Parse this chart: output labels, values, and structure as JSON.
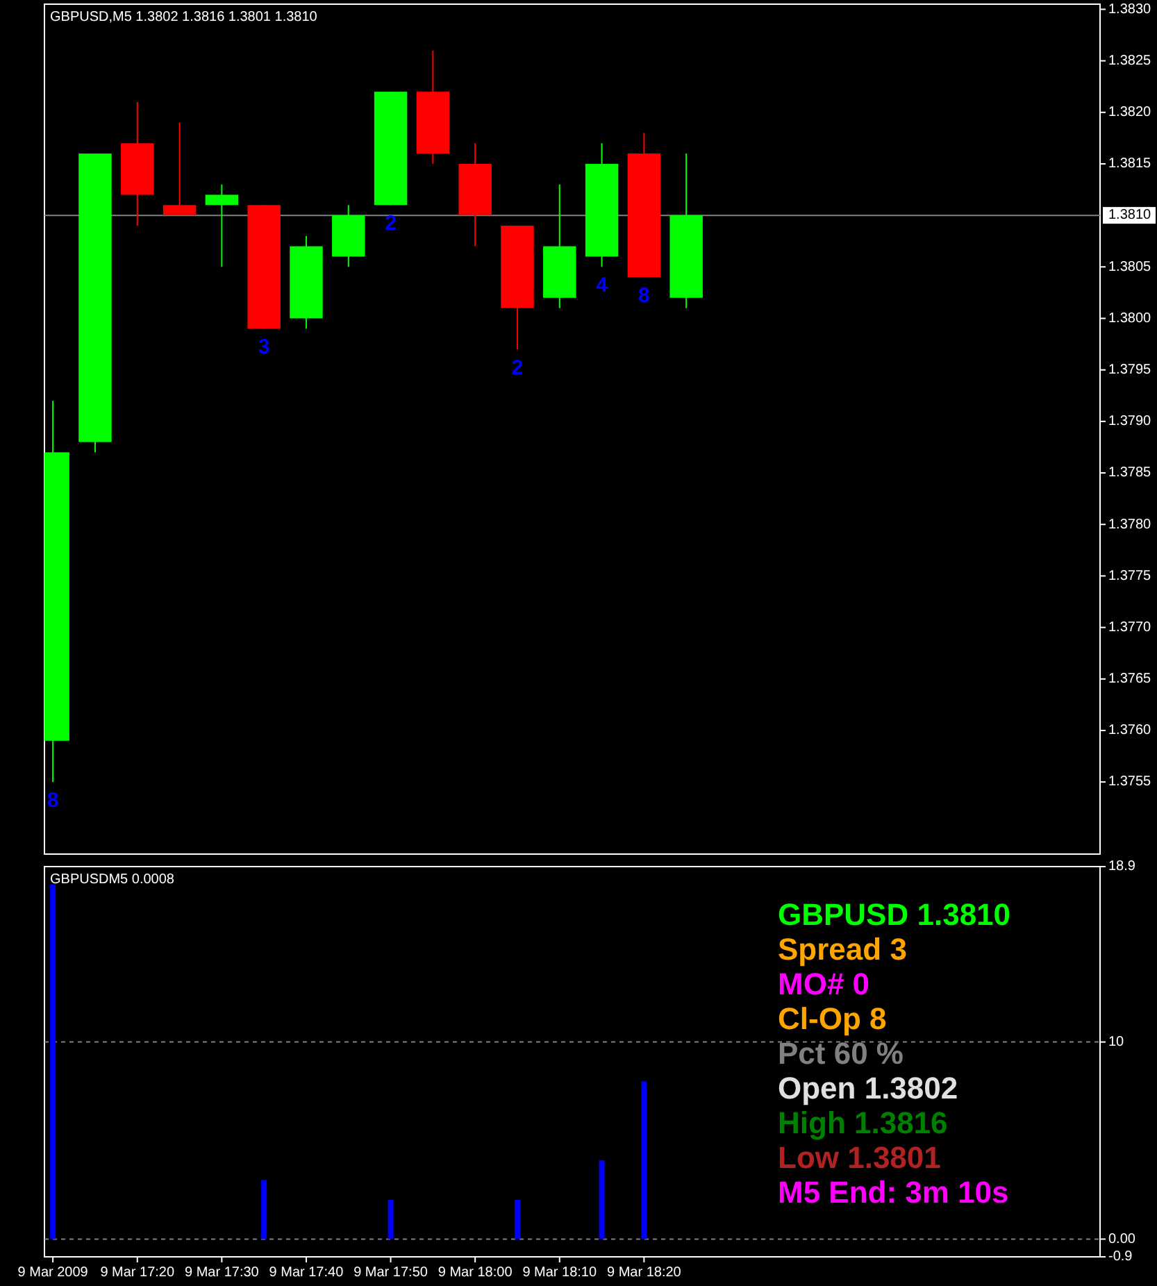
{
  "chart_data": [
    {
      "type": "candlestick",
      "title": "GBPUSD,M5  1.3802 1.3816 1.3801 1.3810",
      "x": [
        "2009-03-09T17:10",
        "2009-03-09T17:15",
        "2009-03-09T17:20",
        "2009-03-09T17:25",
        "2009-03-09T17:30",
        "2009-03-09T17:35",
        "2009-03-09T17:40",
        "2009-03-09T17:45",
        "2009-03-09T17:50",
        "2009-03-09T17:55",
        "2009-03-09T18:00",
        "2009-03-09T18:05",
        "2009-03-09T18:10",
        "2009-03-09T18:15",
        "2009-03-09T18:20",
        "2009-03-09T18:25"
      ],
      "ohlc": [
        [
          1.3759,
          1.3792,
          1.3755,
          1.3787
        ],
        [
          1.3788,
          1.3816,
          1.3787,
          1.3816
        ],
        [
          1.3817,
          1.3821,
          1.3809,
          1.3812
        ],
        [
          1.3811,
          1.3819,
          1.381,
          1.381
        ],
        [
          1.3811,
          1.3813,
          1.3805,
          1.3812
        ],
        [
          1.3811,
          1.3811,
          1.3799,
          1.3799
        ],
        [
          1.38,
          1.3808,
          1.3799,
          1.3807
        ],
        [
          1.3806,
          1.3811,
          1.3805,
          1.381
        ],
        [
          1.3811,
          1.3822,
          1.3811,
          1.3822
        ],
        [
          1.3822,
          1.3826,
          1.3815,
          1.3816
        ],
        [
          1.3815,
          1.3817,
          1.3807,
          1.381
        ],
        [
          1.3809,
          1.3809,
          1.3797,
          1.3801
        ],
        [
          1.3802,
          1.3813,
          1.3801,
          1.3807
        ],
        [
          1.3806,
          1.3817,
          1.3805,
          1.3815
        ],
        [
          1.3816,
          1.3818,
          1.3804,
          1.3804
        ],
        [
          1.3802,
          1.3816,
          1.3801,
          1.381
        ]
      ],
      "colors": [
        "#00ff00",
        "#00ff00",
        "#ff0000",
        "#ff0000",
        "#00ff00",
        "#ff0000",
        "#00ff00",
        "#00ff00",
        "#00ff00",
        "#ff0000",
        "#ff0000",
        "#ff0000",
        "#00ff00",
        "#00ff00",
        "#ff0000",
        "#00ff00"
      ],
      "xlim": [
        "2009-03-09T17:09",
        "2009-03-09T19:14"
      ],
      "ylim": [
        1.3748,
        1.38305
      ],
      "yticks": [
        {
          "value": 1.383,
          "label": "1.3830"
        },
        {
          "value": 1.3825,
          "label": "1.3825"
        },
        {
          "value": 1.382,
          "label": "1.3820"
        },
        {
          "value": 1.3815,
          "label": "1.3815"
        },
        {
          "value": 1.3805,
          "label": "1.3805"
        },
        {
          "value": 1.38,
          "label": "1.3800"
        },
        {
          "value": 1.3795,
          "label": "1.3795"
        },
        {
          "value": 1.379,
          "label": "1.3790"
        },
        {
          "value": 1.3785,
          "label": "1.3785"
        },
        {
          "value": 1.378,
          "label": "1.3780"
        },
        {
          "value": 1.3775,
          "label": "1.3775"
        },
        {
          "value": 1.377,
          "label": "1.3770"
        },
        {
          "value": 1.3765,
          "label": "1.3765"
        },
        {
          "value": 1.376,
          "label": "1.3760"
        },
        {
          "value": 1.3755,
          "label": "1.3755"
        }
      ],
      "tick_labels": "y",
      "ref_lines": [
        {
          "axis": "y",
          "value": 1.381,
          "label": "1.3810",
          "color": "#808080",
          "line_style": "solid"
        }
      ],
      "annotations": [
        {
          "text": "8",
          "x": "2009-03-09T17:10",
          "y": 1.3755
        },
        {
          "text": "3",
          "x": "2009-03-09T17:35",
          "y": 1.3799
        },
        {
          "text": "2",
          "x": "2009-03-09T17:50",
          "y": 1.3811
        },
        {
          "text": "2",
          "x": "2009-03-09T18:05",
          "y": 1.3797
        },
        {
          "text": "4",
          "x": "2009-03-09T18:15",
          "y": 1.3805
        },
        {
          "text": "8",
          "x": "2009-03-09T18:20",
          "y": 1.3804
        }
      ]
    },
    {
      "type": "bar",
      "title": "GBPUSDM5 0.0008",
      "x": [
        "2009-03-09T17:10",
        "2009-03-09T17:15",
        "2009-03-09T17:20",
        "2009-03-09T17:25",
        "2009-03-09T17:30",
        "2009-03-09T17:35",
        "2009-03-09T17:40",
        "2009-03-09T17:45",
        "2009-03-09T17:50",
        "2009-03-09T17:55",
        "2009-03-09T18:00",
        "2009-03-09T18:05",
        "2009-03-09T18:10",
        "2009-03-09T18:15",
        "2009-03-09T18:20",
        "2009-03-09T18:25"
      ],
      "values": [
        18,
        0,
        0,
        0,
        0,
        3,
        0,
        0,
        2,
        0,
        0,
        2,
        0,
        4,
        8,
        0
      ],
      "color": "#0000ff",
      "xlim": [
        "2009-03-09T17:09",
        "2009-03-09T19:14"
      ],
      "xticks": [
        {
          "value": "2009-03-09T17:10",
          "label": "9 Mar 2009"
        },
        {
          "value": "2009-03-09T17:20",
          "label": "9 Mar 17:20"
        },
        {
          "value": "2009-03-09T17:30",
          "label": "9 Mar 17:30"
        },
        {
          "value": "2009-03-09T17:40",
          "label": "9 Mar 17:40"
        },
        {
          "value": "2009-03-09T17:50",
          "label": "9 Mar 17:50"
        },
        {
          "value": "2009-03-09T18:00",
          "label": "9 Mar 18:00"
        },
        {
          "value": "2009-03-09T18:10",
          "label": "9 Mar 18:10"
        },
        {
          "value": "2009-03-09T18:20",
          "label": "9 Mar 18:20"
        }
      ],
      "ylim": [
        -0.9,
        18.9
      ],
      "yticks": [
        18.9,
        10,
        {
          "value": 0,
          "label": "0.00"
        },
        -0.9
      ],
      "ref_lines": [
        {
          "axis": "y",
          "value": 10,
          "color": "#808080",
          "line_style": "dashed"
        },
        {
          "axis": "y",
          "value": 0,
          "color": "#808080",
          "line_style": "dashed"
        }
      ],
      "annotations": [
        "GBPUSD 1.3810",
        "Spread 3",
        "MO# 0",
        "Cl-Op 8",
        "Pct 60 %",
        "Open 1.3802",
        "High 1.3816",
        "Low 1.3801",
        "M5 End: 3m 10s"
      ]
    }
  ]
}
